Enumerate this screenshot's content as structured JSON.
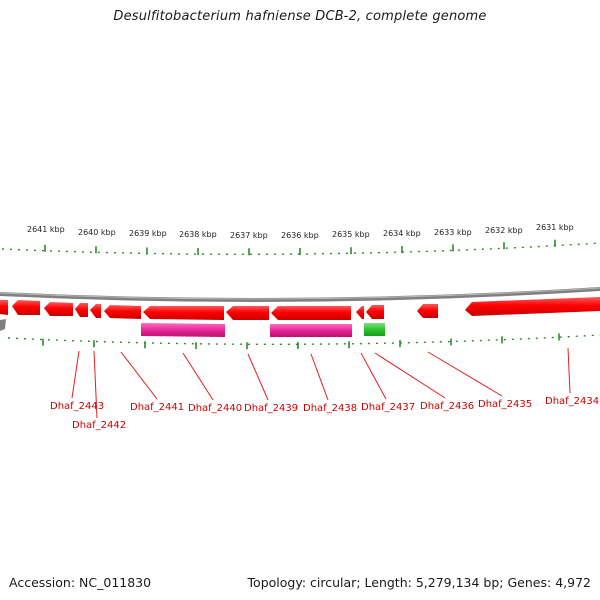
{
  "header": {
    "title": "Desulfitobacterium hafniense DCB-2, complete genome"
  },
  "footer": {
    "accession_label": "Accession:",
    "accession_value": "NC_011830",
    "topology_label": "Topology:",
    "topology_value": "circular",
    "length_label": "Length:",
    "length_value": "5,279,134 bp",
    "genes_label": "Genes:",
    "genes_value": "4,972"
  },
  "scale": {
    "ticks": [
      "2641 kbp",
      "2640 kbp",
      "2639 kbp",
      "2638 kbp",
      "2637 kbp",
      "2636 kbp",
      "2635 kbp",
      "2634 kbp",
      "2633 kbp",
      "2632 kbp",
      "2631 kbp"
    ]
  },
  "genes": [
    "Dhaf_2443",
    "Dhaf_2442",
    "Dhaf_2441",
    "Dhaf_2440",
    "Dhaf_2439",
    "Dhaf_2438",
    "Dhaf_2437",
    "Dhaf_2436",
    "Dhaf_2435",
    "Dhaf_2434"
  ],
  "colors": {
    "cds": "#ff0000",
    "rna": "#e0208a",
    "green_feature": "#22bb22",
    "backbone": "#808080",
    "ticks": "#2a8a2a",
    "gene_label": "#cc0000"
  }
}
